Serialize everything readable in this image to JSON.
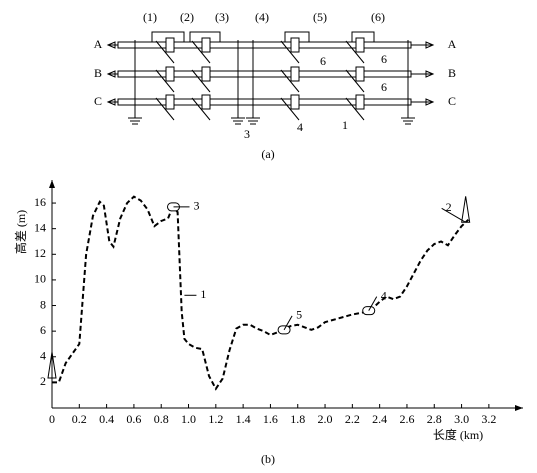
{
  "diagram": {
    "sections": [
      "(1)",
      "(2)",
      "(3)",
      "(4)",
      "(5)",
      "(6)"
    ],
    "phases_left": [
      "A",
      "B",
      "C"
    ],
    "phases_right": [
      "A",
      "B",
      "C"
    ],
    "callouts": [
      "6",
      "6",
      "6",
      "3",
      "4",
      "1"
    ],
    "caption": "(a)"
  },
  "chart_data": {
    "type": "line",
    "x_label": "长度 (km)",
    "y_label": "高差 (m)",
    "caption": "(b)",
    "x": [
      0,
      0.05,
      0.1,
      0.2,
      0.25,
      0.3,
      0.35,
      0.38,
      0.42,
      0.45,
      0.5,
      0.55,
      0.6,
      0.65,
      0.7,
      0.75,
      0.8,
      0.85,
      0.88,
      0.9,
      0.92,
      0.95,
      0.97,
      1.0,
      1.05,
      1.1,
      1.15,
      1.2,
      1.25,
      1.3,
      1.35,
      1.4,
      1.45,
      1.5,
      1.55,
      1.6,
      1.65,
      1.7,
      1.75,
      1.8,
      1.85,
      1.9,
      1.95,
      2.0,
      2.1,
      2.2,
      2.3,
      2.35,
      2.4,
      2.45,
      2.5,
      2.55,
      2.6,
      2.65,
      2.7,
      2.75,
      2.8,
      2.85,
      2.9,
      2.95,
      3.0,
      3.05
    ],
    "values": [
      2,
      2,
      3.5,
      5,
      12,
      15,
      16.1,
      15.8,
      13,
      12.6,
      14.8,
      16,
      16.5,
      16.2,
      15.5,
      14.2,
      14.6,
      14.8,
      15.6,
      15.5,
      15.3,
      7.5,
      5.4,
      5,
      4.7,
      4.6,
      2.5,
      1.5,
      2.3,
      4.5,
      6.2,
      6.5,
      6.5,
      6.2,
      6,
      5.7,
      5.9,
      6.2,
      6.4,
      6.5,
      6.3,
      6.1,
      6.3,
      6.7,
      7,
      7.3,
      7.5,
      7.8,
      8.3,
      8.7,
      8.5,
      8.7,
      9.5,
      10.5,
      11.5,
      12.3,
      12.8,
      13,
      12.7,
      13.5,
      14.2,
      14.7
    ],
    "color": "#000000",
    "line_style": "dashed",
    "xlim": [
      0,
      3.45
    ],
    "ylim": [
      0,
      17.8
    ],
    "xticks": [
      0,
      0.2,
      0.4,
      0.6,
      0.8,
      {
        "value": 1,
        "label": "1.0"
      },
      1.2,
      1.4,
      1.6,
      1.8,
      {
        "value": 2,
        "label": "2.0"
      },
      2.2,
      2.4,
      2.6,
      2.8,
      {
        "value": 3,
        "label": "3.0"
      },
      3.2
    ],
    "yticks": [
      2,
      4,
      6,
      8,
      10,
      12,
      14,
      16
    ],
    "annotations": [
      {
        "text": "1",
        "x": 0.97,
        "y": 8.8,
        "marker": "none"
      },
      {
        "text": "2",
        "x": 3.03,
        "y": 14.5,
        "marker": "triangle"
      },
      {
        "text": "3",
        "x": 0.89,
        "y": 15.7,
        "marker": "capsule"
      },
      {
        "text": "4",
        "x": 2.32,
        "y": 7.6,
        "marker": "capsule"
      },
      {
        "text": "5",
        "x": 1.7,
        "y": 6.1,
        "marker": "capsule"
      }
    ]
  }
}
